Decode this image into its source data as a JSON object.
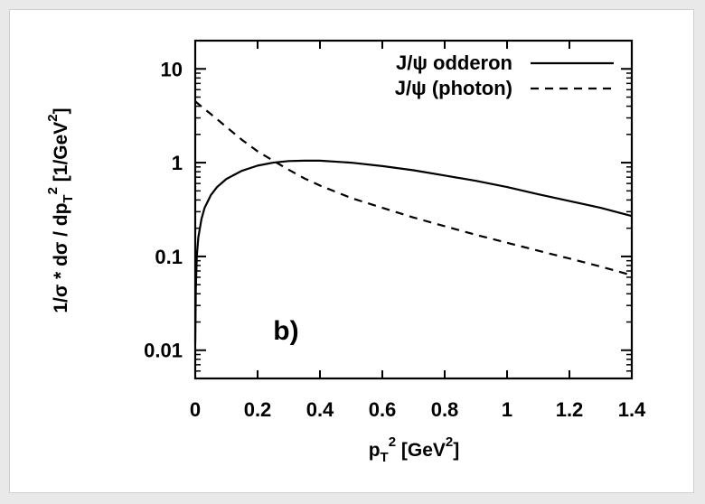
{
  "chart_data": {
    "type": "line",
    "title": "",
    "xlabel": {
      "base": "p",
      "sub": "T",
      "sup": "2",
      "rest": " [GeV",
      "unit_sup": "2",
      "end": "]"
    },
    "ylabel": {
      "text": "1/σ * dσ / dp",
      "sub": "T",
      "sup": "2",
      "rest": " [1/GeV",
      "unit_sup": "2",
      "end": "]"
    },
    "xlim": [
      0,
      1.4
    ],
    "ylim": [
      0.005,
      20
    ],
    "yscale": "log",
    "grid": false,
    "legend_position": "top-right",
    "x_ticks": [
      {
        "value": 0,
        "label": "0"
      },
      {
        "value": 0.2,
        "label": "0.2"
      },
      {
        "value": 0.4,
        "label": "0.4"
      },
      {
        "value": 0.6,
        "label": "0.6"
      },
      {
        "value": 0.8,
        "label": "0.8"
      },
      {
        "value": 1.0,
        "label": "1"
      },
      {
        "value": 1.2,
        "label": "1.2"
      },
      {
        "value": 1.4,
        "label": "1.4"
      }
    ],
    "y_ticks": [
      {
        "value": 10,
        "label": "10"
      },
      {
        "value": 1,
        "label": "1"
      },
      {
        "value": 0.1,
        "label": "0.1"
      },
      {
        "value": 0.01,
        "label": "0.01"
      }
    ],
    "series": [
      {
        "name": "J/ψ  odderon",
        "style": "solid",
        "x": [
          0.0,
          0.002,
          0.005,
          0.01,
          0.02,
          0.03,
          0.05,
          0.07,
          0.1,
          0.15,
          0.2,
          0.25,
          0.3,
          0.35,
          0.4,
          0.5,
          0.6,
          0.7,
          0.8,
          0.9,
          1.0,
          1.1,
          1.2,
          1.3,
          1.4
        ],
        "y": [
          0.012,
          0.045,
          0.1,
          0.16,
          0.25,
          0.33,
          0.45,
          0.55,
          0.67,
          0.82,
          0.93,
          1.0,
          1.04,
          1.05,
          1.05,
          1.0,
          0.92,
          0.83,
          0.73,
          0.64,
          0.55,
          0.46,
          0.39,
          0.33,
          0.27
        ]
      },
      {
        "name": "J/ψ  (photon)",
        "style": "dashed",
        "x": [
          0.0,
          0.05,
          0.1,
          0.15,
          0.2,
          0.25,
          0.3,
          0.35,
          0.4,
          0.5,
          0.6,
          0.7,
          0.8,
          0.9,
          1.0,
          1.1,
          1.2,
          1.3,
          1.4
        ],
        "y": [
          4.5,
          3.3,
          2.4,
          1.75,
          1.32,
          1.05,
          0.84,
          0.68,
          0.57,
          0.42,
          0.33,
          0.26,
          0.21,
          0.17,
          0.14,
          0.115,
          0.095,
          0.078,
          0.063
        ]
      }
    ],
    "annotations": [
      {
        "text": "b)",
        "x": 0.25,
        "y": 0.013
      }
    ]
  }
}
